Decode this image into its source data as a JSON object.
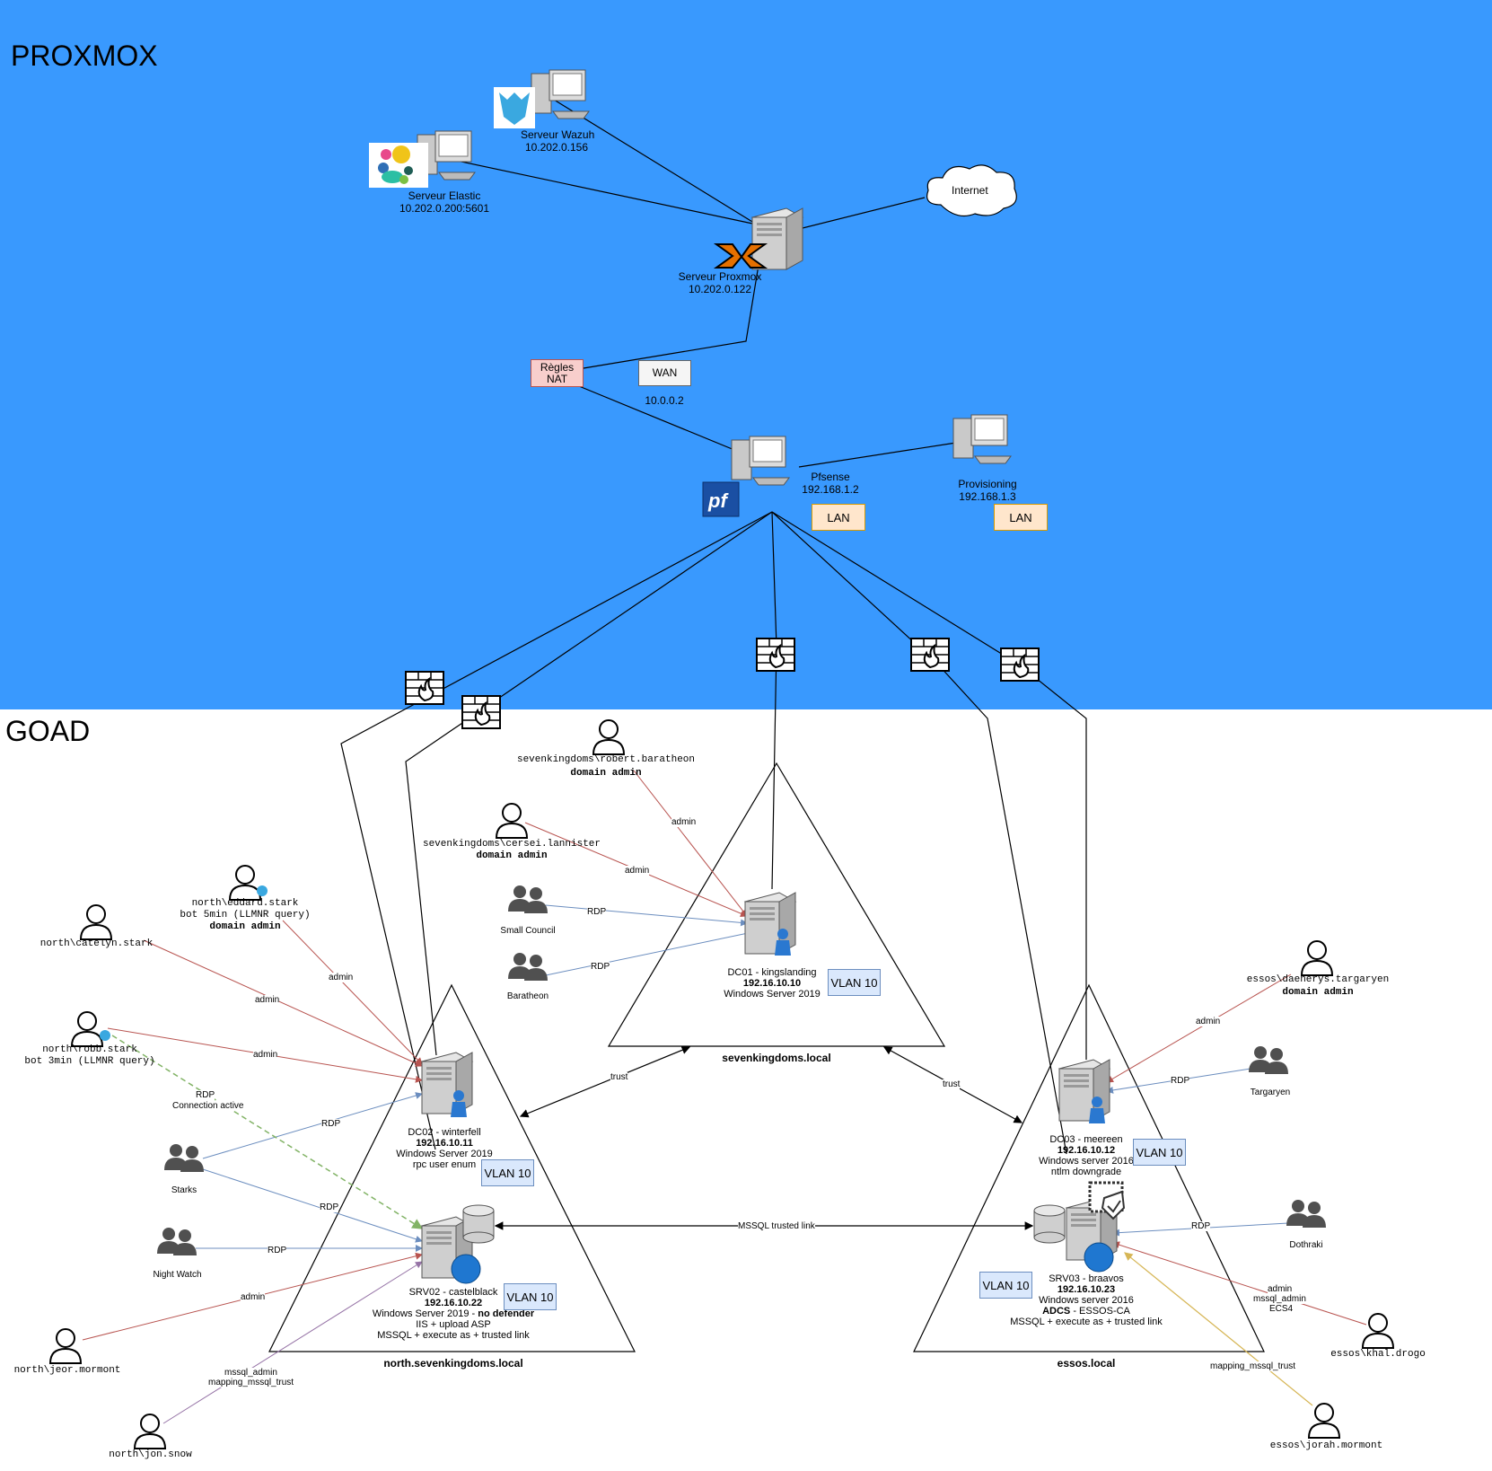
{
  "zones": {
    "proxmox": "PROXMOX",
    "goad": "GOAD"
  },
  "servers": {
    "wazuh": {
      "name": "Serveur Wazuh",
      "ip": "10.202.0.156"
    },
    "elastic": {
      "name": "Serveur Elastic",
      "ip": "10.202.0.200:5601"
    },
    "proxmox": {
      "name": "Serveur Proxmox",
      "ip": "10.202.0.122"
    },
    "internet": "Internet",
    "pfsense": {
      "name": "Pfsense",
      "ip": "192.168.1.2"
    },
    "provisioning": {
      "name": "Provisioning",
      "ip": "192.168.1.3"
    }
  },
  "boxes": {
    "nat": "Règles NAT",
    "wan": "WAN",
    "wan_ip": "10.0.0.2",
    "lan": "LAN",
    "vlan": "VLAN 10"
  },
  "domains": {
    "sevenkingdoms": "sevenkingdoms.local",
    "north": "north.sevenkingdoms.local",
    "essos": "essos.local"
  },
  "hosts": {
    "dc01": {
      "name": "DC01 - kingslanding",
      "ip": "192.16.10.10",
      "os": "Windows Server 2019"
    },
    "dc02": {
      "name": "DC02 - winterfell",
      "ip": "192.16.10.11",
      "os": "Windows Server 2019",
      "note": "rpc user enum"
    },
    "srv02": {
      "name": "SRV02 - castelblack",
      "ip": "192.16.10.22",
      "os": "Windows Server 2019 - ",
      "os_bold": "no defender",
      "note1": "IIS + upload ASP",
      "note2": "MSSQL + execute as + trusted link"
    },
    "dc03": {
      "name": "DC03 - meereen",
      "ip": "192.16.10.12",
      "os": "Windows server 2016",
      "note": "ntlm downgrade"
    },
    "srv03": {
      "name": "SRV03 - braavos",
      "ip": "192.16.10.23",
      "os": "Windows server 2016",
      "adcs": "ADCS",
      "adcs_rest": " - ESSOS-CA",
      "note": "MSSQL + execute as + trusted link"
    }
  },
  "users": {
    "robert": {
      "name": "sevenkingdoms\\robert.baratheon",
      "role": "domain admin"
    },
    "cersei": {
      "name": "sevenkingdoms\\cersei.lannister",
      "role": "domain admin"
    },
    "eddard": {
      "name": "north\\eddard.stark",
      "note": "bot 5min (LLMNR query)",
      "role": "domain admin"
    },
    "catelyn": {
      "name": "north\\catelyn.stark"
    },
    "robb": {
      "name": "north\\robb.stark",
      "note": "bot 3min (LLMNR query)"
    },
    "jeor": {
      "name": "north\\jeor.mormont"
    },
    "jon": {
      "name": "north\\jon.snow"
    },
    "daenerys": {
      "name": "essos\\daenerys.targaryen",
      "role": "domain admin"
    },
    "khal": {
      "name": "essos\\khal.drogo"
    },
    "jorah": {
      "name": "essos\\jorah.mormont"
    }
  },
  "groups": {
    "small_council": "Small Council",
    "baratheon": "Baratheon",
    "starks": "Starks",
    "night_watch": "Night Watch",
    "targaryen": "Targaryen",
    "dothraki": "Dothraki"
  },
  "edge_labels": {
    "admin": "admin",
    "rdp": "RDP",
    "rdp_active": "RDP",
    "rdp_active2": "Connection active",
    "trust": "trust",
    "mssql_link": "MSSQL trusted link",
    "mssql_admin": "mssql_admin",
    "mapping": "mapping_mssql_trust",
    "ecs": "ECS4"
  },
  "colors": {
    "proxmox_zone": "#3999fe",
    "admin_edge": "#b85450",
    "rdp_edge": "#6c8ebf",
    "rdp_active_edge": "#82b366",
    "mssql_edge": "#9673a6",
    "mapping_edge": "#d6b656",
    "vlan_fill": "#dae8fc",
    "lan_fill": "#ffe6cc",
    "nat_fill": "#f8cecc"
  }
}
